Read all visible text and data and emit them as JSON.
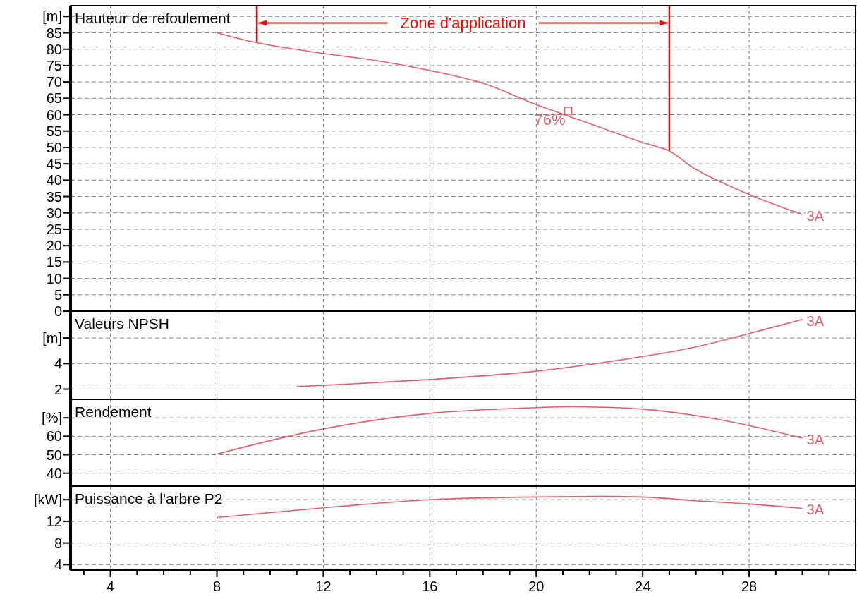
{
  "chart_data": [
    {
      "type": "line",
      "title": "Hauteur de refoulement",
      "xlim": [
        2.5,
        32
      ],
      "xticks": [
        4,
        8,
        12,
        16,
        20,
        24,
        28
      ],
      "ylim": [
        0,
        93.3
      ],
      "yticks": [
        0,
        5,
        10,
        15,
        20,
        25,
        30,
        35,
        40,
        45,
        50,
        55,
        60,
        65,
        70,
        75,
        80,
        85,
        {
          "value": 90,
          "label": "[m]"
        }
      ],
      "grid": true,
      "tick_labels": "y",
      "legend": false,
      "series": [
        {
          "name": "3A",
          "color": "#e0606e",
          "x": [
            8,
            9.5,
            12,
            14,
            16,
            18,
            20,
            22,
            24,
            25,
            26,
            28,
            30
          ],
          "values": [
            85,
            82,
            78.7,
            76.5,
            73.5,
            69.6,
            63.1,
            57.3,
            51.5,
            48.9,
            43.3,
            35.6,
            29.5
          ]
        }
      ],
      "ref_lines": [
        {
          "axis": "x",
          "value": 9.5,
          "color": "#ff0000"
        },
        {
          "axis": "x",
          "value": 25,
          "color": "#ff0000"
        }
      ],
      "annotations": [
        {
          "text": "Zone d'application",
          "x": 9.5,
          "y": 88
        },
        {
          "text": "76%",
          "x": 21.2,
          "y": 61.2
        }
      ]
    },
    {
      "type": "line",
      "title": "Valeurs NPSH",
      "xlim": [
        2.5,
        32
      ],
      "xticks": [
        4,
        8,
        12,
        16,
        20,
        24,
        28
      ],
      "ylim": [
        1.2,
        8.1
      ],
      "yticks": [
        2,
        4,
        {
          "value": 6,
          "label": "[m]"
        }
      ],
      "grid": true,
      "tick_labels": "y",
      "legend": false,
      "series": [
        {
          "name": "3A",
          "color": "#e0606e",
          "x": [
            11,
            12,
            16,
            20,
            24,
            26,
            28,
            30
          ],
          "values": [
            2.2,
            2.3,
            2.75,
            3.4,
            4.55,
            5.3,
            6.35,
            7.45
          ]
        }
      ]
    },
    {
      "type": "line",
      "title": "Rendement",
      "xlim": [
        2.5,
        32
      ],
      "xticks": [
        4,
        8,
        12,
        16,
        20,
        24,
        28
      ],
      "ylim": [
        33,
        80
      ],
      "yticks": [
        40,
        50,
        60,
        {
          "value": 70,
          "label": "[%]"
        }
      ],
      "grid": true,
      "tick_labels": "y",
      "legend": false,
      "series": [
        {
          "name": "3A",
          "color": "#e0606e",
          "x": [
            8,
            12,
            16,
            20,
            21.5,
            24,
            26,
            28,
            30
          ],
          "values": [
            50.4,
            64,
            72.4,
            75.5,
            76,
            74.7,
            71.2,
            65.8,
            59
          ]
        }
      ]
    },
    {
      "type": "line",
      "title": "Puissance à l'arbre P2",
      "xlim": [
        2.5,
        32
      ],
      "xticks": [
        {
          "value": 3,
          "label": null
        },
        4,
        {
          "value": 5,
          "label": null
        },
        {
          "value": 6,
          "label": null
        },
        {
          "value": 7,
          "label": null
        },
        8,
        {
          "value": 9,
          "label": null
        },
        {
          "value": 10,
          "label": null
        },
        {
          "value": 11,
          "label": null
        },
        12,
        {
          "value": 13,
          "label": null
        },
        {
          "value": 14,
          "label": null
        },
        {
          "value": 15,
          "label": null
        },
        16,
        {
          "value": 17,
          "label": null
        },
        {
          "value": 18,
          "label": null
        },
        {
          "value": 19,
          "label": null
        },
        20,
        {
          "value": 21,
          "label": null
        },
        {
          "value": 22,
          "label": null
        },
        {
          "value": 23,
          "label": null
        },
        24,
        {
          "value": 25,
          "label": null
        },
        {
          "value": 26,
          "label": null
        },
        {
          "value": 27,
          "label": null
        },
        28,
        {
          "value": 29,
          "label": null
        },
        {
          "value": 30,
          "label": null
        },
        {
          "value": 31,
          "label": null
        }
      ],
      "ylim": [
        3,
        18.5
      ],
      "yticks": [
        4,
        8,
        12,
        {
          "value": 16,
          "label": "[kW]"
        }
      ],
      "grid": true,
      "legend": false,
      "series": [
        {
          "name": "3A",
          "color": "#e0606e",
          "x": [
            8,
            12,
            16,
            20,
            24,
            26,
            28,
            30
          ],
          "values": [
            12.7,
            14.5,
            16,
            16.5,
            16.5,
            15.8,
            15.2,
            14.4
          ]
        }
      ]
    }
  ]
}
